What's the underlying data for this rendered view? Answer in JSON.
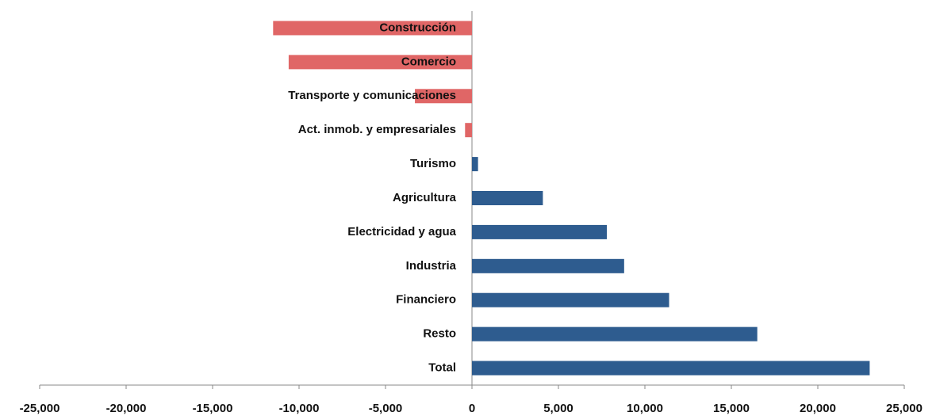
{
  "chart_data": {
    "type": "bar",
    "orientation": "horizontal",
    "categories": [
      "Construcción",
      "Comercio",
      "Transporte y comunicaciones",
      "Act. inmob. y empresariales",
      "Turismo",
      "Agricultura",
      "Electricidad y agua",
      "Industria",
      "Financiero",
      "Resto",
      "Total"
    ],
    "values": [
      -11500,
      -10600,
      -3300,
      -400,
      350,
      4100,
      7800,
      8800,
      11400,
      16500,
      23000
    ],
    "positive_color": "#2e5c8f",
    "negative_color": "#e06666",
    "xlim": [
      -25000,
      25000
    ],
    "xticks": [
      {
        "value": -25000,
        "label": "-25,000"
      },
      {
        "value": -20000,
        "label": "-20,000"
      },
      {
        "value": -15000,
        "label": "-15,000"
      },
      {
        "value": -10000,
        "label": "-10,000"
      },
      {
        "value": -5000,
        "label": "-5,000"
      },
      0,
      {
        "value": 5000,
        "label": "5,000"
      },
      {
        "value": 10000,
        "label": "10,000"
      },
      {
        "value": 15000,
        "label": "15,000"
      },
      {
        "value": 20000,
        "label": "20,000"
      },
      {
        "value": 25000,
        "label": "25,000"
      }
    ]
  }
}
